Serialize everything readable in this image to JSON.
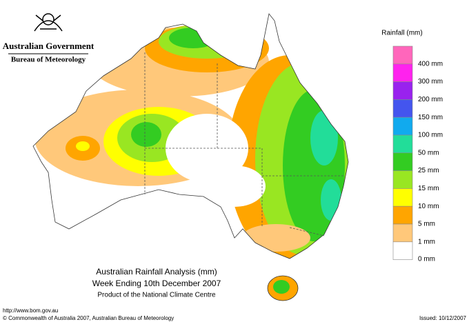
{
  "header": {
    "government": "Australian Government",
    "bureau": "Bureau of Meteorology"
  },
  "legend": {
    "title": "Rainfall (mm)",
    "colors": [
      "#ff66bb",
      "#ff22ee",
      "#9922ee",
      "#4455ee",
      "#11aaee",
      "#22dd99",
      "#33cc22",
      "#99e622",
      "#ffff00",
      "#ffa500",
      "#ffc87a",
      "#ffffff"
    ],
    "labels": [
      "400 mm",
      "300 mm",
      "200 mm",
      "150 mm",
      "100 mm",
      "50 mm",
      "25 mm",
      "15 mm",
      "10 mm",
      "5 mm",
      "1 mm",
      "0 mm"
    ]
  },
  "titles": [
    "Australian Rainfall Analysis (mm)",
    "Week Ending 10th December 2007",
    "Product of the National Climate Centre"
  ],
  "footer": {
    "url": "http://www.bom.gov.au",
    "copyright": "© Commonwealth of Australia 2007, Australian Bureau of Meteorology",
    "issued": "Issued: 10/12/2007"
  }
}
